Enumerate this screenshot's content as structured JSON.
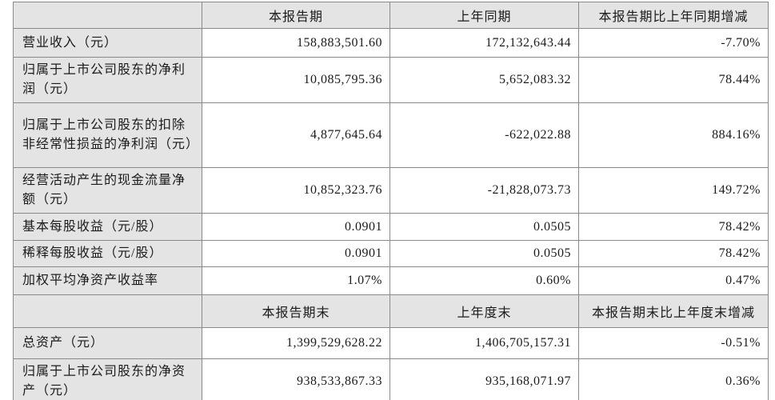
{
  "table": {
    "period_section": {
      "headers": {
        "corner": "",
        "current": "本报告期",
        "prior": "上年同期",
        "change": "本报告期比上年同期增减"
      },
      "rows": [
        {
          "label": "营业收入（元）",
          "current": "158,883,501.60",
          "prior": "172,132,643.44",
          "change": "-7.70%"
        },
        {
          "label": "归属于上市公司股东的净利润（元）",
          "current": "10,085,795.36",
          "prior": "5,652,083.32",
          "change": "78.44%"
        },
        {
          "label": "归属于上市公司股东的扣除非经常性损益的净利润（元）",
          "current": "4,877,645.64",
          "prior": "-622,022.88",
          "change": "884.16%"
        },
        {
          "label": "经营活动产生的现金流量净额（元）",
          "current": "10,852,323.76",
          "prior": "-21,828,073.73",
          "change": "149.72%"
        },
        {
          "label": "基本每股收益（元/股）",
          "current": "0.0901",
          "prior": "0.0505",
          "change": "78.42%"
        },
        {
          "label": "稀释每股收益（元/股）",
          "current": "0.0901",
          "prior": "0.0505",
          "change": "78.42%"
        },
        {
          "label": "加权平均净资产收益率",
          "current": "1.07%",
          "prior": "0.60%",
          "change": "0.47%"
        }
      ]
    },
    "period_end_section": {
      "headers": {
        "corner": "",
        "current": "本报告期末",
        "prior": "上年度末",
        "change": "本报告期末比上年度末增减"
      },
      "rows": [
        {
          "label": "总资产（元）",
          "current": "1,399,529,628.22",
          "prior": "1,406,705,157.31",
          "change": "-0.51%"
        },
        {
          "label": "归属于上市公司股东的净资产（元）",
          "current": "938,533,867.33",
          "prior": "935,168,071.97",
          "change": "0.36%"
        }
      ]
    },
    "colors": {
      "header_bg": "#e4e4e4",
      "label_bg": "#e4e4e4",
      "data_bg": "#ffffff",
      "border": "#8a8a8a",
      "text": "#1b1b1b"
    }
  }
}
